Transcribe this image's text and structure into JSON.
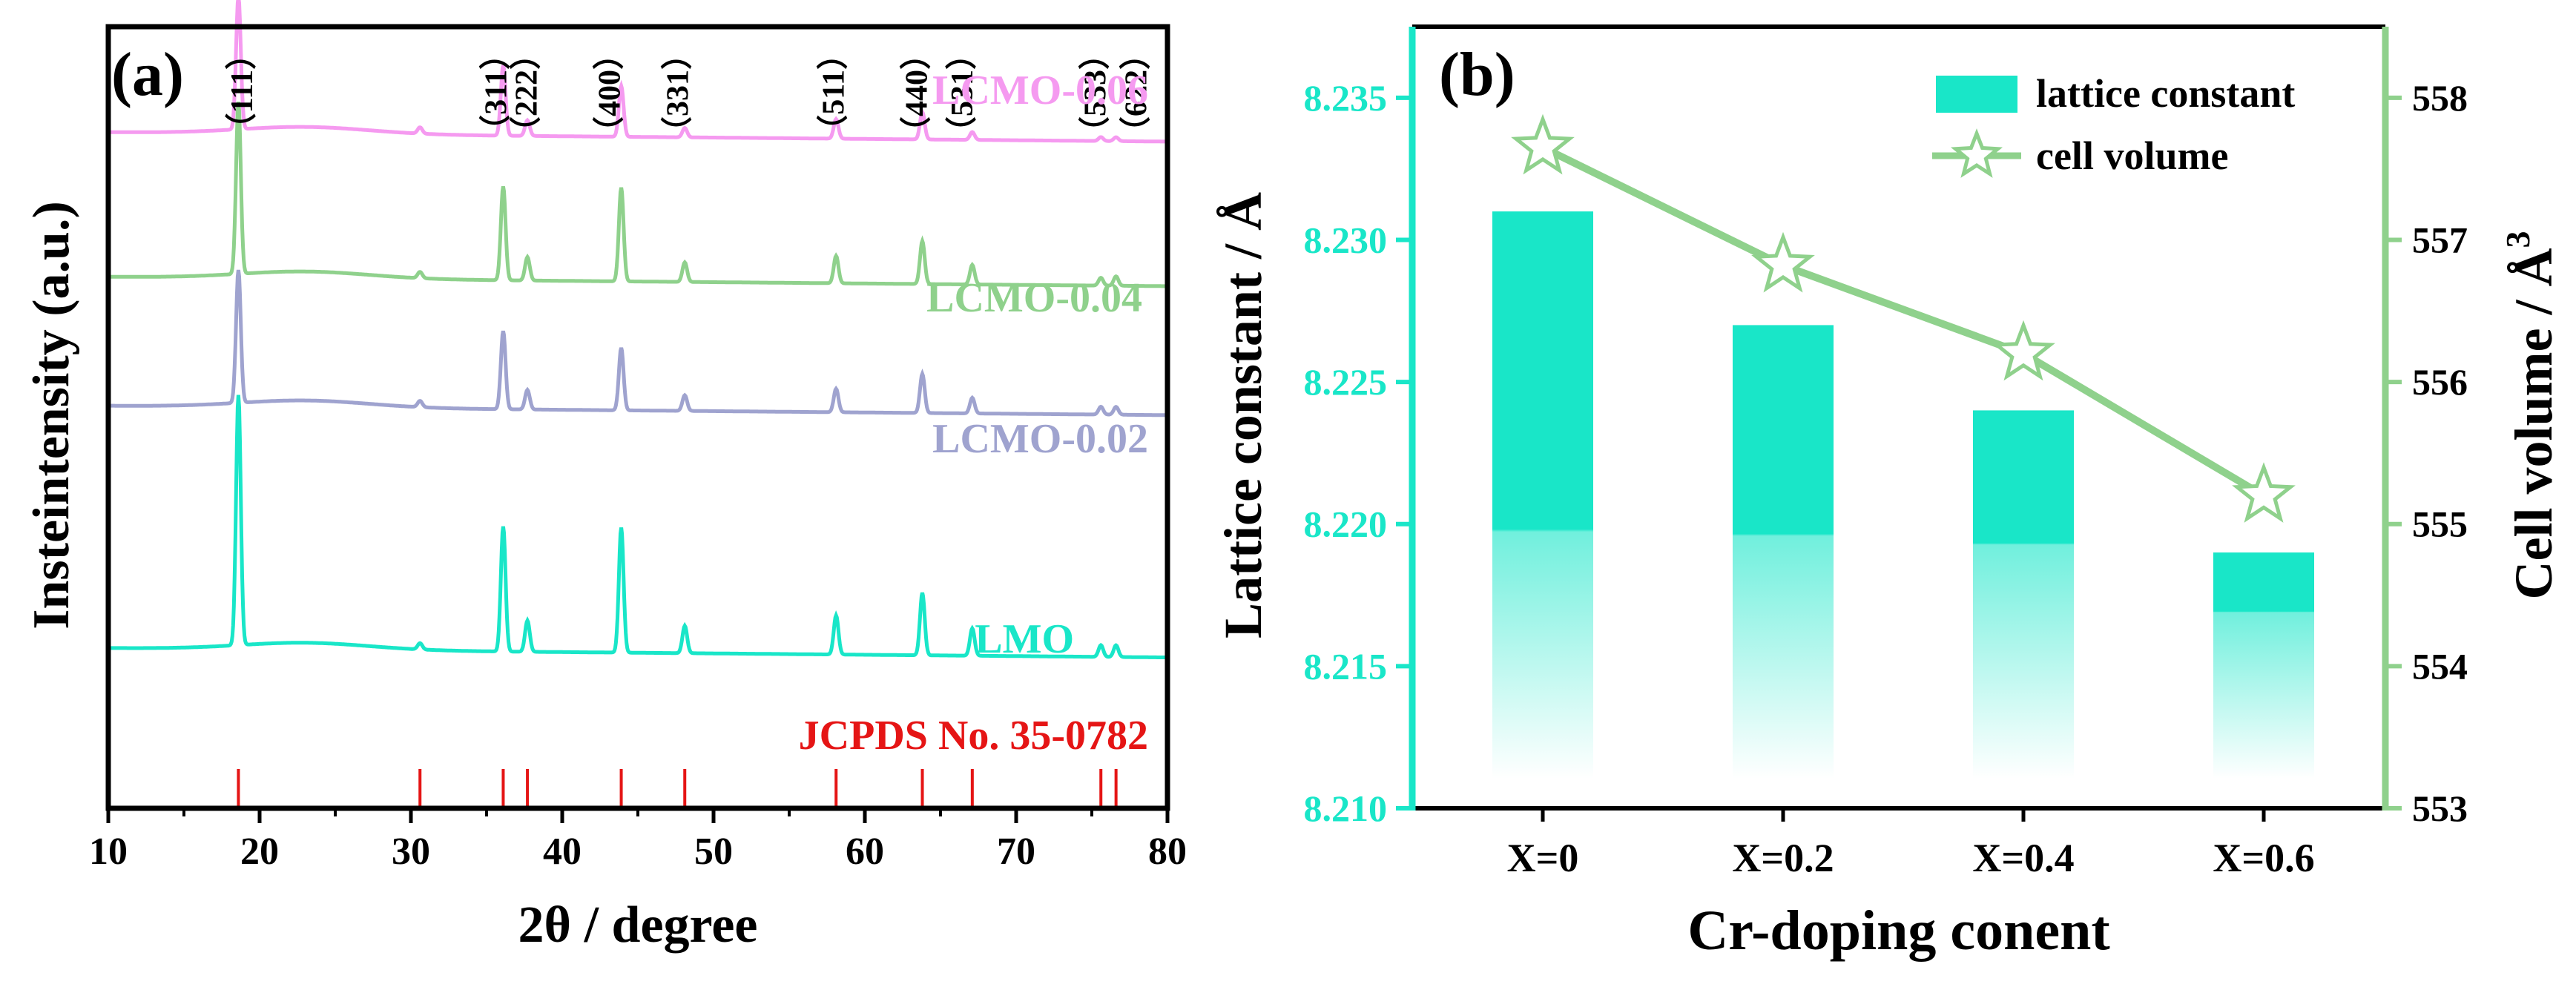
{
  "chart_data": [
    {
      "panel": "(a)",
      "type": "line",
      "xlabel": "2θ / degree",
      "ylabel": "Insteintensity (a.u.)",
      "xlim": [
        10,
        80
      ],
      "xticks": [
        "10",
        "20",
        "30",
        "40",
        "50",
        "60",
        "70",
        "80"
      ],
      "peak_labels": [
        {
          "text": "（111）",
          "x": 19.5
        },
        {
          "text": "（311）",
          "x": 36.3
        },
        {
          "text": "（222）",
          "x": 38.3
        },
        {
          "text": "（400）",
          "x": 43.8
        },
        {
          "text": "（331）",
          "x": 48.3
        },
        {
          "text": "（511）",
          "x": 58.6
        },
        {
          "text": "（440）",
          "x": 64.1
        },
        {
          "text": "（531）",
          "x": 67.1
        },
        {
          "text": "（533）",
          "x": 75.9
        },
        {
          "text": "（622）",
          "x": 78.6
        }
      ],
      "series": [
        {
          "name": "LCMO-0.06",
          "color": "#f59af0",
          "baseline": 0.865,
          "peaks": [
            [
              18.6,
              0.17
            ],
            [
              30.6,
              0.008
            ],
            [
              36.1,
              0.09
            ],
            [
              37.7,
              0.02
            ],
            [
              43.9,
              0.065
            ],
            [
              48.1,
              0.012
            ],
            [
              58.1,
              0.025
            ],
            [
              63.8,
              0.035
            ],
            [
              67.1,
              0.01
            ],
            [
              75.6,
              0.005
            ],
            [
              76.6,
              0.005
            ]
          ]
        },
        {
          "name": "LCMO-0.04",
          "color": "#8fd18c",
          "baseline": 0.68,
          "peaks": [
            [
              18.6,
              0.22
            ],
            [
              30.6,
              0.008
            ],
            [
              36.1,
              0.12
            ],
            [
              37.7,
              0.03
            ],
            [
              43.9,
              0.12
            ],
            [
              48.1,
              0.025
            ],
            [
              58.1,
              0.035
            ],
            [
              63.8,
              0.055
            ],
            [
              67.1,
              0.025
            ],
            [
              75.6,
              0.01
            ],
            [
              76.6,
              0.012
            ]
          ]
        },
        {
          "name": "LCMO-0.02",
          "color": "#9fa3cf",
          "baseline": 0.515,
          "peaks": [
            [
              18.6,
              0.17
            ],
            [
              30.6,
              0.008
            ],
            [
              36.1,
              0.1
            ],
            [
              37.7,
              0.025
            ],
            [
              43.9,
              0.08
            ],
            [
              48.1,
              0.02
            ],
            [
              58.1,
              0.03
            ],
            [
              63.8,
              0.05
            ],
            [
              67.1,
              0.02
            ],
            [
              75.6,
              0.01
            ],
            [
              76.6,
              0.01
            ]
          ]
        },
        {
          "name": "LMO",
          "color": "#19e6c8",
          "baseline": 0.205,
          "peaks": [
            [
              18.6,
              0.32
            ],
            [
              30.6,
              0.008
            ],
            [
              36.1,
              0.16
            ],
            [
              37.7,
              0.04
            ],
            [
              43.9,
              0.16
            ],
            [
              48.1,
              0.035
            ],
            [
              58.1,
              0.05
            ],
            [
              63.8,
              0.08
            ],
            [
              67.1,
              0.035
            ],
            [
              75.6,
              0.015
            ],
            [
              76.6,
              0.015
            ]
          ]
        }
      ],
      "reference": {
        "label": "JCPDS No. 35-0782",
        "color": "#e51515",
        "positions": [
          18.6,
          30.6,
          36.1,
          37.7,
          43.9,
          48.1,
          58.1,
          63.8,
          67.1,
          75.6,
          76.6
        ]
      }
    },
    {
      "panel": "(b)",
      "type": "bar",
      "categories": [
        "X=0",
        "X=0.2",
        "X=0.4",
        "X=0.6"
      ],
      "xlabel": "Cr-doping conent",
      "ylabel": "Lattice constant / Å",
      "y2label": "Cell volume / Å",
      "y2label_sup": "3",
      "ylim": [
        8.21,
        8.2375
      ],
      "yticks": [
        "8.210",
        "8.215",
        "8.220",
        "8.225",
        "8.230",
        "8.235"
      ],
      "y2lim": [
        553,
        558.5
      ],
      "y2ticks": [
        "553",
        "554",
        "555",
        "556",
        "557",
        "558"
      ],
      "series": [
        {
          "name": "lattice constant",
          "kind": "bar",
          "axis": "left",
          "color": "#19e6c8",
          "values": [
            8.231,
            8.227,
            8.224,
            8.219
          ]
        },
        {
          "name": "cell volume",
          "kind": "line",
          "axis": "right",
          "color": "#8fd18c",
          "values": [
            557.65,
            556.82,
            556.2,
            555.2
          ]
        }
      ],
      "left_axis_color": "#19e6c8",
      "right_axis_color": "#8fd18c",
      "legend_position": "top-right"
    }
  ]
}
